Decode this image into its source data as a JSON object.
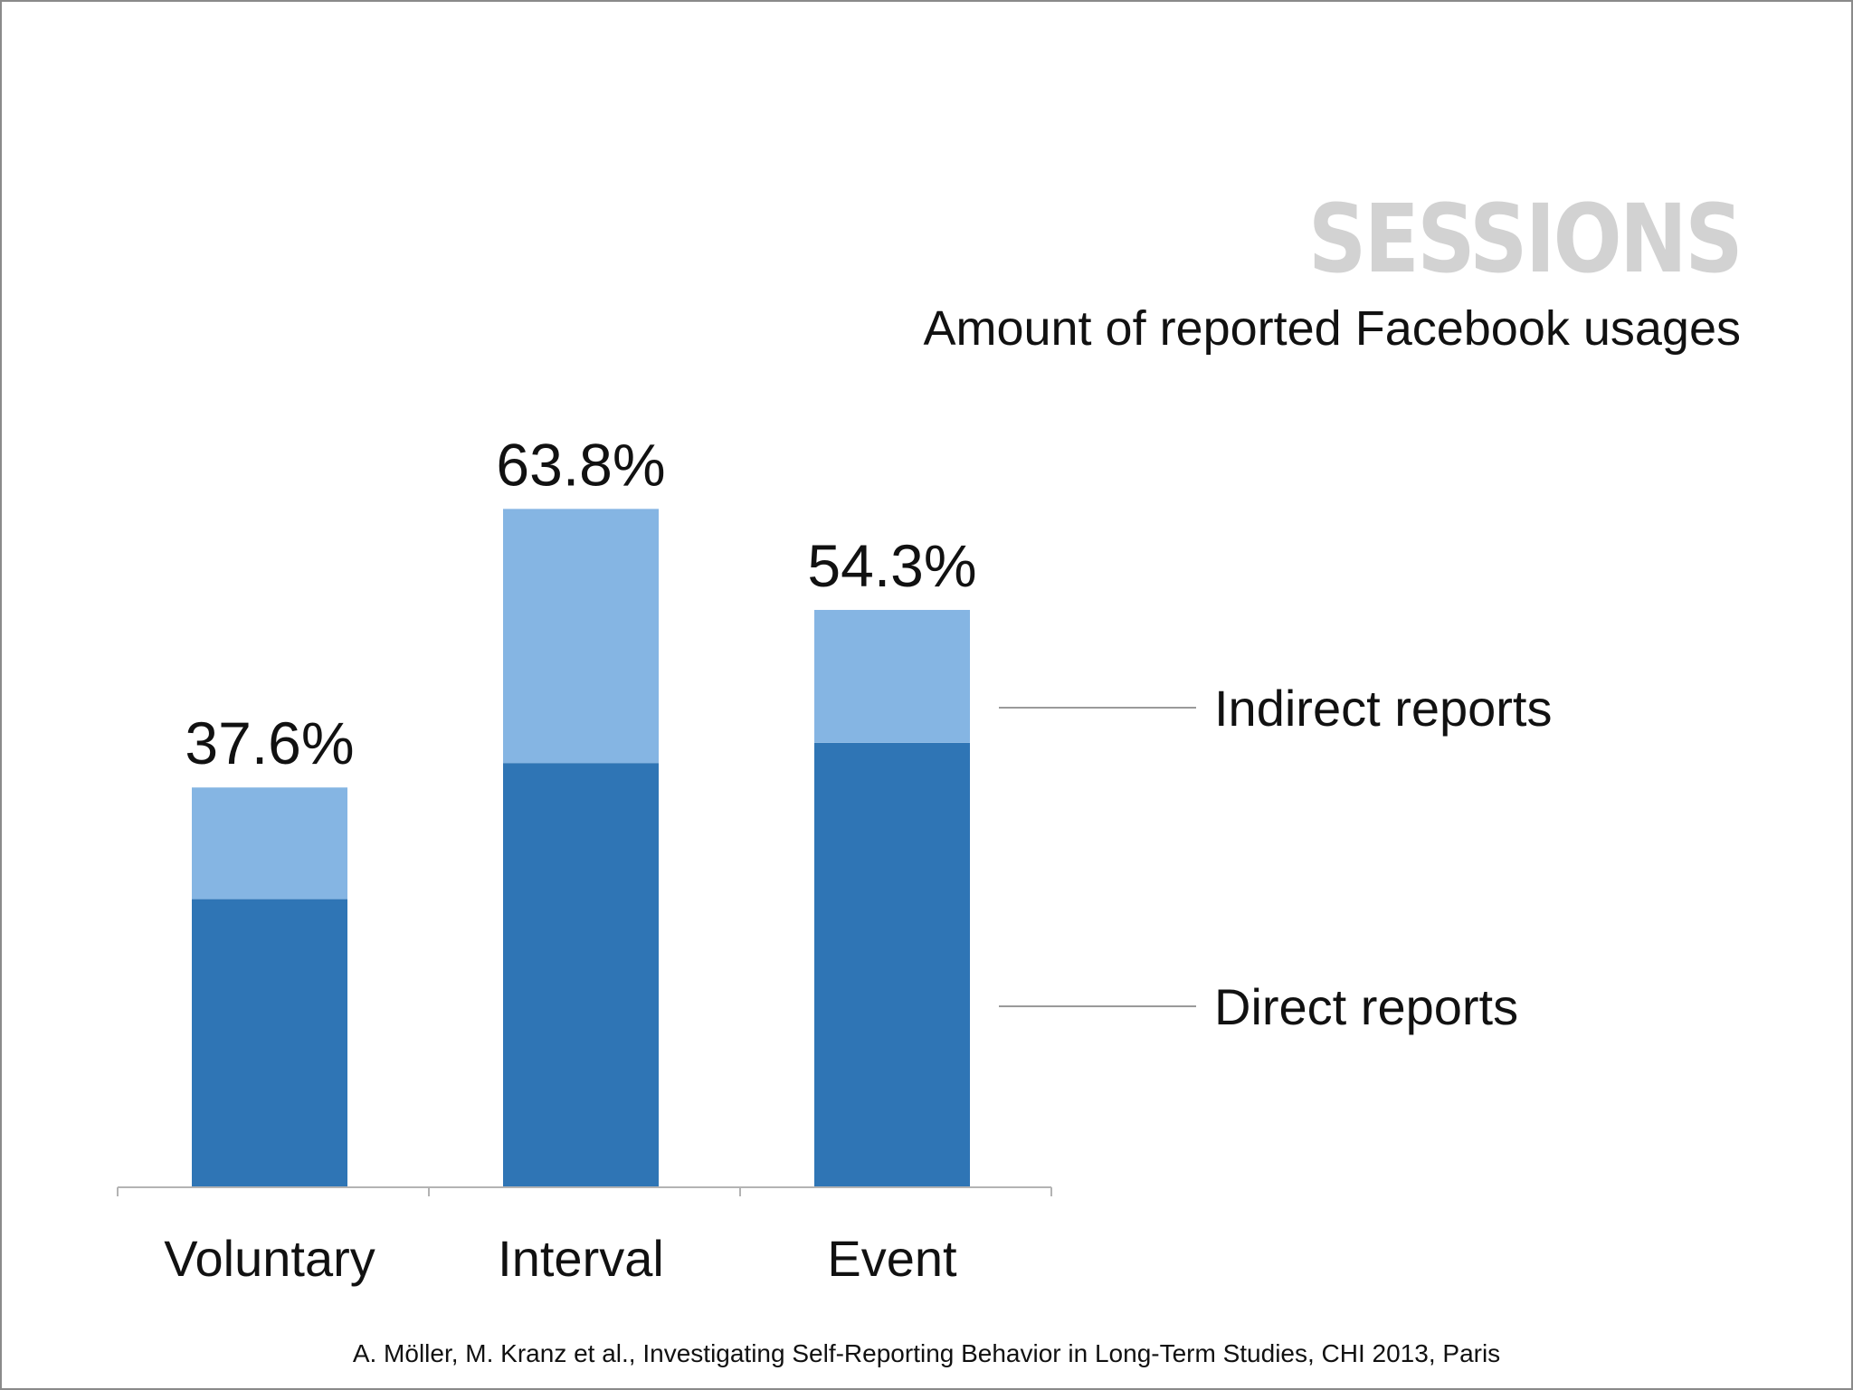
{
  "chart_data": {
    "type": "bar",
    "stacked": true,
    "title": "SESSIONS",
    "subtitle": "Amount of reported Facebook usages",
    "categories": [
      "Voluntary",
      "Interval",
      "Event"
    ],
    "totals": [
      37.6,
      63.8,
      54.3
    ],
    "total_labels": [
      "37.6%",
      "63.8%",
      "54.3%"
    ],
    "series": [
      {
        "name": "Direct reports",
        "values": [
          27.1,
          39.9,
          41.8
        ],
        "color": "#2f75b5"
      },
      {
        "name": "Indirect reports",
        "values": [
          10.5,
          23.9,
          12.5
        ],
        "color": "#85b5e3"
      }
    ],
    "ylim": [
      0,
      64
    ],
    "grid": false,
    "legend": "right"
  },
  "citation": "A. Möller, M. Kranz et al., Investigating Self-Reporting Behavior in Long-Term Studies, CHI 2013, Paris"
}
